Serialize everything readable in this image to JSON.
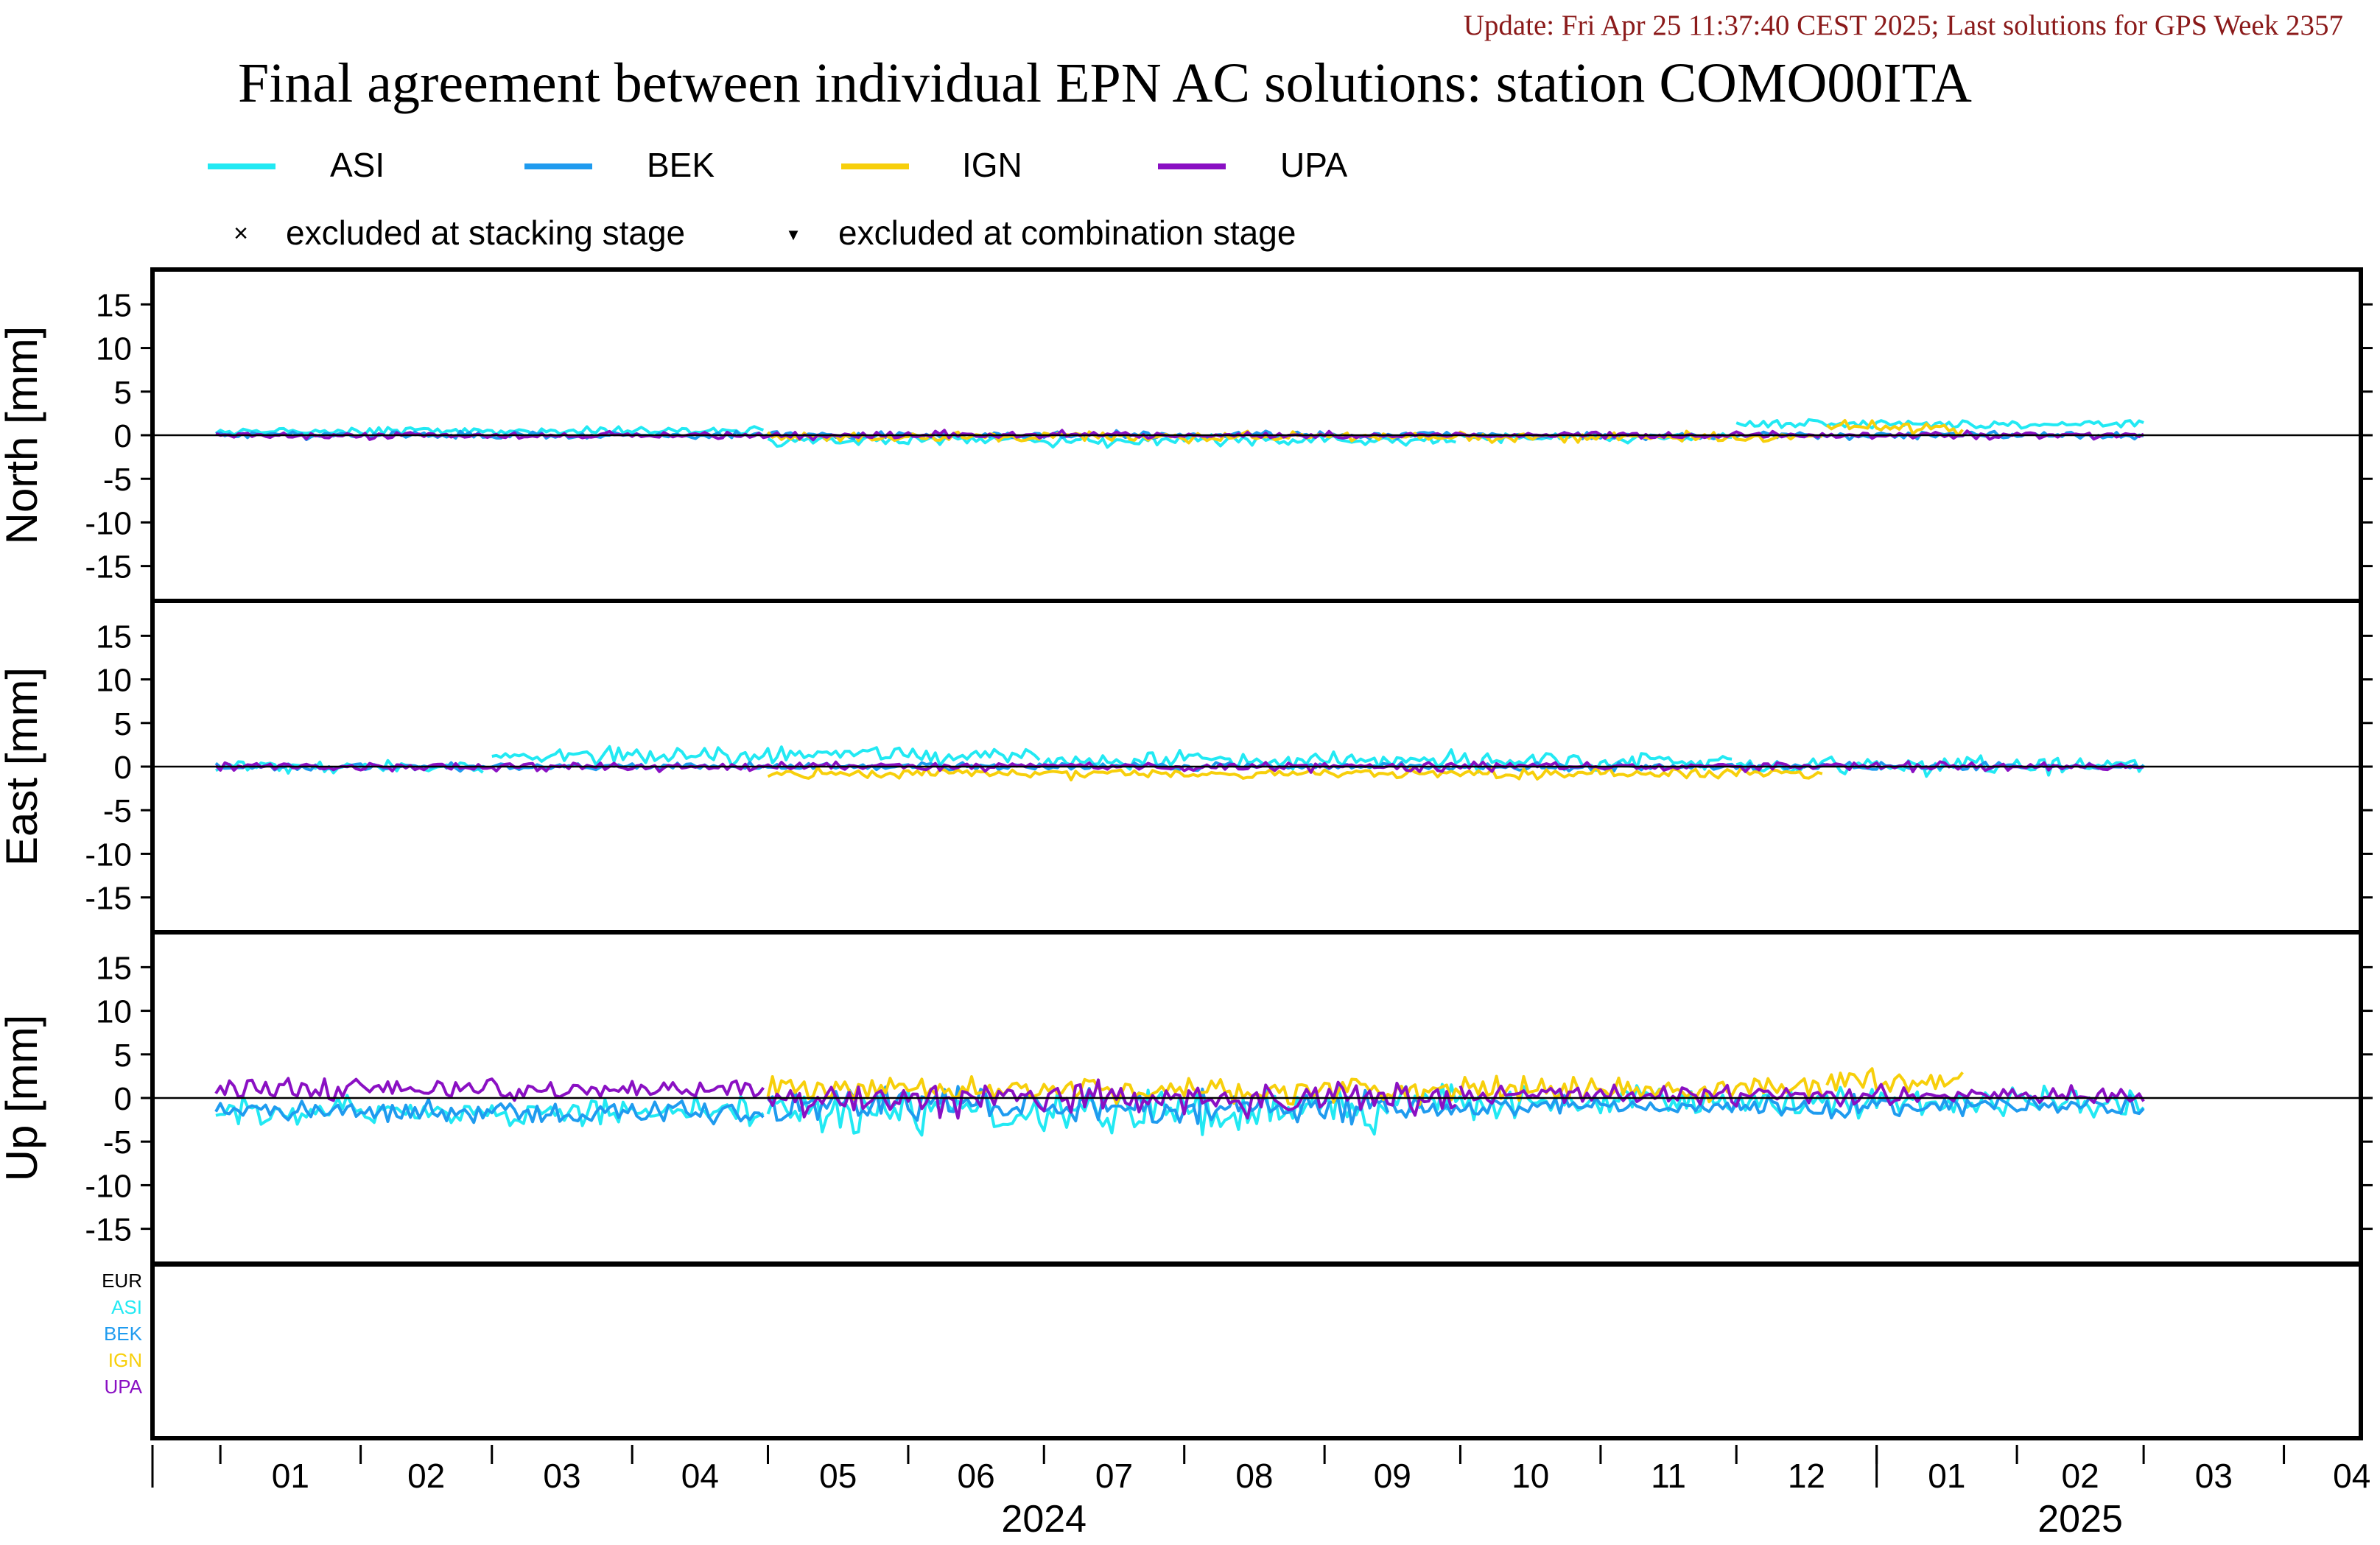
{
  "update_text": "Update: Fri Apr 25 11:37:40 CEST 2025; Last solutions for GPS Week 2357",
  "title": "Final agreement between individual EPN AC solutions: station COMO00ITA",
  "colors": {
    "background": "#ffffff",
    "update_text": "#8b1a1a",
    "ASI": "#22e9f3",
    "BEK": "#1f9bef",
    "IGN": "#f7cf0b",
    "UPA": "#8a10c3",
    "EUR": "#000000"
  },
  "legend": {
    "series": [
      "ASI",
      "BEK",
      "IGN",
      "UPA"
    ],
    "markers": [
      {
        "symbol": "×",
        "label": "excluded at stacking stage"
      },
      {
        "symbol": "▼",
        "label": "excluded at combination stage"
      }
    ]
  },
  "bottom_panel_labels": [
    "EUR",
    "ASI",
    "BEK",
    "IGN",
    "UPA"
  ],
  "chart_data": {
    "type": "line",
    "x_axis": {
      "kind": "date",
      "range": [
        "2023-12-17",
        "2025-04-18"
      ],
      "month_ticks": [
        "01",
        "02",
        "03",
        "04",
        "05",
        "06",
        "07",
        "08",
        "09",
        "10",
        "11",
        "12",
        "01",
        "02",
        "03",
        "04"
      ],
      "month_tick_dates": [
        "2024-01-01",
        "2024-02-01",
        "2024-03-01",
        "2024-04-01",
        "2024-05-01",
        "2024-06-01",
        "2024-07-01",
        "2024-08-01",
        "2024-09-01",
        "2024-10-01",
        "2024-11-01",
        "2024-12-01",
        "2025-01-01",
        "2025-02-01",
        "2025-03-01",
        "2025-04-01"
      ],
      "year_labels": [
        {
          "label": "2024",
          "date": "2024-07-01"
        },
        {
          "label": "2025",
          "date": "2025-02-15"
        }
      ],
      "year_boundary": "2025-01-01"
    },
    "data_range": {
      "start": "2023-12-31",
      "end": "2025-03-01",
      "step_days": 1
    },
    "panels": [
      {
        "ylabel": "North [mm]",
        "ylim": [
          -19,
          19
        ],
        "yticks": [
          -15,
          -10,
          -5,
          0,
          5,
          10,
          15
        ],
        "series": [
          {
            "name": "ASI",
            "segments": [
              {
                "start": "2023-12-31",
                "end": "2024-04-30",
                "mean": 0.5,
                "amp": 0.6
              },
              {
                "start": "2024-05-01",
                "end": "2024-09-30",
                "mean": -0.6,
                "amp": 0.9
              },
              {
                "start": "2024-10-01",
                "end": "2024-11-30",
                "mean": -0.3,
                "amp": 0.7
              },
              {
                "start": "2024-12-01",
                "end": "2025-03-01",
                "mean": 1.3,
                "amp": 0.8
              }
            ]
          },
          {
            "name": "BEK",
            "segments": [
              {
                "start": "2023-12-31",
                "end": "2025-03-01",
                "mean": 0.0,
                "amp": 0.6
              }
            ]
          },
          {
            "name": "IGN",
            "segments": [
              {
                "start": "2024-05-01",
                "end": "2024-12-20",
                "mean": -0.2,
                "amp": 0.8
              },
              {
                "start": "2024-12-21",
                "end": "2025-01-20",
                "mean": 0.8,
                "amp": 1.2
              }
            ]
          },
          {
            "name": "UPA",
            "segments": [
              {
                "start": "2023-12-31",
                "end": "2025-03-01",
                "mean": 0.0,
                "amp": 0.6
              }
            ]
          }
        ]
      },
      {
        "ylabel": "East [mm]",
        "ylim": [
          -19,
          19
        ],
        "yticks": [
          -15,
          -10,
          -5,
          0,
          5,
          10,
          15
        ],
        "series": [
          {
            "name": "ASI",
            "segments": [
              {
                "start": "2023-12-31",
                "end": "2024-02-28",
                "mean": 0.0,
                "amp": 1.1
              },
              {
                "start": "2024-03-01",
                "end": "2024-06-30",
                "mean": 1.3,
                "amp": 1.3
              },
              {
                "start": "2024-07-01",
                "end": "2024-11-30",
                "mean": 0.7,
                "amp": 1.4
              },
              {
                "start": "2024-12-01",
                "end": "2025-03-01",
                "mean": 0.2,
                "amp": 1.6
              }
            ]
          },
          {
            "name": "BEK",
            "segments": [
              {
                "start": "2023-12-31",
                "end": "2025-03-01",
                "mean": 0.0,
                "amp": 0.6
              }
            ]
          },
          {
            "name": "IGN",
            "segments": [
              {
                "start": "2024-05-01",
                "end": "2024-12-20",
                "mean": -0.8,
                "amp": 0.9
              }
            ]
          },
          {
            "name": "UPA",
            "segments": [
              {
                "start": "2023-12-31",
                "end": "2025-03-01",
                "mean": 0.0,
                "amp": 0.7
              }
            ]
          }
        ]
      },
      {
        "ylabel": "Up [mm]",
        "ylim": [
          -19,
          19
        ],
        "yticks": [
          -15,
          -10,
          -5,
          0,
          5,
          10,
          15
        ],
        "series": [
          {
            "name": "ASI",
            "segments": [
              {
                "start": "2023-12-31",
                "end": "2024-04-30",
                "mean": -1.5,
                "amp": 2.5
              },
              {
                "start": "2024-05-01",
                "end": "2024-09-15",
                "mean": -1.5,
                "amp": 3.5
              },
              {
                "start": "2024-09-16",
                "end": "2025-03-01",
                "mean": -0.5,
                "amp": 2.5
              }
            ]
          },
          {
            "name": "BEK",
            "segments": [
              {
                "start": "2023-12-31",
                "end": "2024-04-30",
                "mean": -1.5,
                "amp": 1.8
              },
              {
                "start": "2024-05-01",
                "end": "2024-09-15",
                "mean": -1.0,
                "amp": 3.0
              },
              {
                "start": "2024-09-16",
                "end": "2025-03-01",
                "mean": -1.0,
                "amp": 1.8
              }
            ]
          },
          {
            "name": "IGN",
            "segments": [
              {
                "start": "2024-05-01",
                "end": "2024-12-20",
                "mean": 1.0,
                "amp": 2.0
              },
              {
                "start": "2024-12-21",
                "end": "2025-01-20",
                "mean": 2.0,
                "amp": 2.0
              }
            ]
          },
          {
            "name": "UPA",
            "segments": [
              {
                "start": "2023-12-31",
                "end": "2024-04-30",
                "mean": 1.0,
                "amp": 1.8
              },
              {
                "start": "2024-05-01",
                "end": "2024-09-30",
                "mean": 0.0,
                "amp": 2.8
              },
              {
                "start": "2024-10-01",
                "end": "2025-03-01",
                "mean": 0.3,
                "amp": 1.6
              }
            ]
          }
        ]
      }
    ]
  }
}
